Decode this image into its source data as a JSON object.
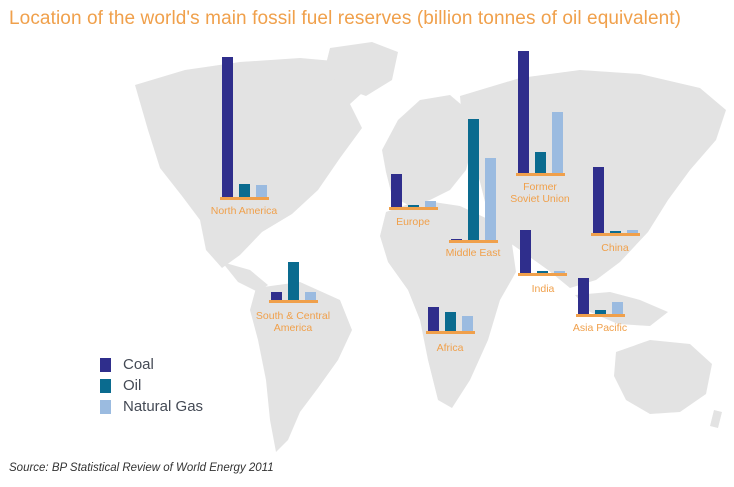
{
  "title": "Location of the world's main fossil fuel reserves (billion tonnes of oil equivalent)",
  "source": "Source: BP Statistical Review of World Energy 2011",
  "colors": {
    "coal": "#2f2e8c",
    "oil": "#0a6b8f",
    "gas": "#9bbbe0",
    "baseline": "#f0a04b",
    "map": "#e3e3e3",
    "label": "#f0a04b"
  },
  "legend": {
    "items": [
      {
        "key": "coal",
        "label": "Coal"
      },
      {
        "key": "oil",
        "label": "Oil"
      },
      {
        "key": "gas",
        "label": "Natural Gas"
      }
    ]
  },
  "chart_data": {
    "type": "bar",
    "title": "Location of the world's main fossil fuel reserves (billion tonnes of oil equivalent)",
    "unit": "billion tonnes of oil equivalent",
    "series_names": [
      "Coal",
      "Oil",
      "Natural Gas"
    ],
    "regions": [
      {
        "name": "North America",
        "label_lines": [
          "North America"
        ],
        "coal": 140,
        "oil": 13,
        "gas": 12
      },
      {
        "name": "South & Central America",
        "label_lines": [
          "South & Central",
          "America"
        ],
        "coal": 8,
        "oil": 38,
        "gas": 8
      },
      {
        "name": "Europe",
        "label_lines": [
          "Europe"
        ],
        "coal": 33,
        "oil": 2,
        "gas": 6
      },
      {
        "name": "Africa",
        "label_lines": [
          "Africa"
        ],
        "coal": 24,
        "oil": 19,
        "gas": 15
      },
      {
        "name": "Middle East",
        "label_lines": [
          "Middle East"
        ],
        "coal": 1,
        "oil": 121,
        "gas": 82
      },
      {
        "name": "Former Soviet Union",
        "label_lines": [
          "Former",
          "Soviet Union"
        ],
        "coal": 122,
        "oil": 21,
        "gas": 61
      },
      {
        "name": "India",
        "label_lines": [
          "India"
        ],
        "coal": 43,
        "oil": 2,
        "gas": 2
      },
      {
        "name": "China",
        "label_lines": [
          "China"
        ],
        "coal": 66,
        "oil": 2,
        "gas": 3
      },
      {
        "name": "Asia Pacific",
        "label_lines": [
          "Asia Pacific"
        ],
        "coal": 36,
        "oil": 4,
        "gas": 12
      }
    ]
  }
}
